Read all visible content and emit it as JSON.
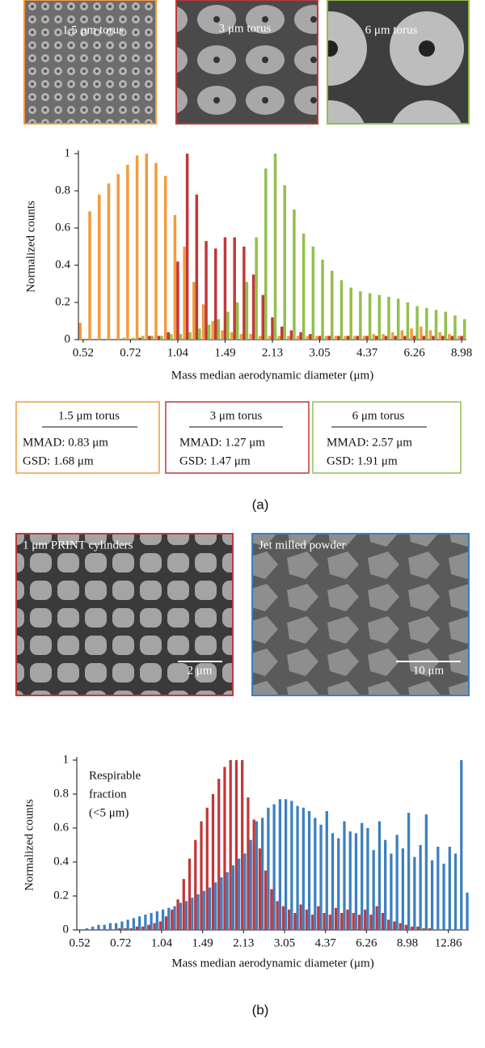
{
  "caption_a": "(a)",
  "caption_b": "(b)",
  "legend_boxes": [
    {
      "lines": [
        "MMAD: 0.83 μm",
        "GSD: 1.68 μm"
      ]
    },
    {
      "lines": [
        "MMAD: 1.27 μm",
        "GSD: 1.47 μm"
      ]
    },
    {
      "lines": [
        "MMAD: 2.57 μm",
        "GSD: 1.91 μm"
      ]
    }
  ],
  "scale_bars": [
    "2 μm",
    "10 μm"
  ],
  "chart_data": [
    {
      "type": "bar",
      "xlabel": "Mass median aerodynamic diameter (μm)",
      "ylabel": "Normalized counts",
      "categories": [
        "0.52",
        null,
        null,
        null,
        null,
        "0.72",
        null,
        null,
        null,
        null,
        "1.04",
        null,
        null,
        null,
        null,
        "1.49",
        null,
        null,
        null,
        null,
        "2.13",
        null,
        null,
        null,
        null,
        "3.05",
        null,
        null,
        null,
        null,
        "4.37",
        null,
        null,
        null,
        null,
        "6.26",
        null,
        null,
        null,
        null,
        "8.98"
      ],
      "ylim": [
        0,
        1
      ],
      "yticks": [
        0,
        0.2,
        0.4,
        0.6,
        0.8,
        1
      ],
      "series": [
        {
          "name": "1.5 μm torus",
          "color": "#f39a3d",
          "values": [
            0.09,
            0.69,
            0.78,
            0.84,
            0.89,
            0.94,
            0.99,
            1.0,
            0.95,
            0.88,
            0.67,
            0.5,
            0.31,
            0.19,
            0.1,
            0.05,
            0.04,
            0.03,
            0.03,
            0.02,
            0.02,
            0.02,
            0.02,
            0.02,
            0.02,
            0.02,
            0.02,
            0.02,
            0.02,
            0.02,
            0.02,
            0.03,
            0.03,
            0.04,
            0.05,
            0.06,
            0.07,
            0.05,
            0.04,
            0.03,
            0.02
          ]
        },
        {
          "name": "3 μm torus",
          "color": "#c0393b",
          "values": [
            0,
            0,
            0,
            0,
            0,
            0,
            0.01,
            0.02,
            0.02,
            0.04,
            0.42,
            1.0,
            0.78,
            0.53,
            0.49,
            0.55,
            0.55,
            0.5,
            0.35,
            0.24,
            0.12,
            0.07,
            0.05,
            0.04,
            0.03,
            0.02,
            0.02,
            0.02,
            0.02,
            0.02,
            0.02,
            0.02,
            0.02,
            0.02,
            0.02,
            0.02,
            0.02,
            0.02,
            0.02,
            0.02,
            0.02
          ]
        },
        {
          "name": "6 μm torus",
          "color": "#92c04a",
          "values": [
            0,
            0,
            0,
            0,
            0.01,
            0.01,
            0.02,
            0.02,
            0.02,
            0.03,
            0.03,
            0.04,
            0.06,
            0.08,
            0.11,
            0.15,
            0.2,
            0.31,
            0.55,
            0.92,
            1.0,
            0.83,
            0.7,
            0.57,
            0.5,
            0.43,
            0.37,
            0.32,
            0.28,
            0.26,
            0.25,
            0.24,
            0.23,
            0.22,
            0.2,
            0.18,
            0.17,
            0.16,
            0.15,
            0.13,
            0.11
          ]
        }
      ]
    },
    {
      "type": "bar",
      "xlabel": "Mass median aerodynamic diameter (μm)",
      "ylabel": "Normalized counts",
      "annotation": [
        "Respirable",
        "fraction",
        "(<5 μm)"
      ],
      "categories": [
        "0.52",
        null,
        null,
        null,
        null,
        null,
        null,
        "0.72",
        null,
        null,
        null,
        null,
        null,
        null,
        "1.04",
        null,
        null,
        null,
        null,
        null,
        null,
        "1.49",
        null,
        null,
        null,
        null,
        null,
        null,
        "2.13",
        null,
        null,
        null,
        null,
        null,
        null,
        "3.05",
        null,
        null,
        null,
        null,
        null,
        null,
        "4.37",
        null,
        null,
        null,
        null,
        null,
        null,
        "6.26",
        null,
        null,
        null,
        null,
        null,
        null,
        "8.98",
        null,
        null,
        null,
        null,
        null,
        null,
        "12.86",
        null,
        null,
        null
      ],
      "ylim": [
        0,
        1
      ],
      "yticks": [
        0,
        0.2,
        0.4,
        0.6,
        0.8,
        1
      ],
      "series": [
        {
          "name": "1 μm PRINT cylinders",
          "color": "#c0393b",
          "values": [
            0,
            0,
            0,
            0,
            0,
            0,
            0,
            0.01,
            0.01,
            0.01,
            0.02,
            0.02,
            0.03,
            0.04,
            0.05,
            0.08,
            0.12,
            0.18,
            0.3,
            0.42,
            0.53,
            0.64,
            0.72,
            0.8,
            0.89,
            0.96,
            1.0,
            1.0,
            1.0,
            0.78,
            0.65,
            0.48,
            0.35,
            0.24,
            0.17,
            0.14,
            0.12,
            0.1,
            0.15,
            0.12,
            0.09,
            0.14,
            0.1,
            0.09,
            0.13,
            0.1,
            0.12,
            0.1,
            0.09,
            0.12,
            0.09,
            0.14,
            0.1,
            0.06,
            0.05,
            0.04,
            0.03,
            0.02,
            0.02,
            0.01,
            0.01,
            0,
            0,
            0,
            0,
            0,
            0
          ]
        },
        {
          "name": "Jet milled powder",
          "color": "#3c7fc0",
          "values": [
            0,
            0.01,
            0.02,
            0.03,
            0.03,
            0.04,
            0.04,
            0.05,
            0.06,
            0.07,
            0.08,
            0.09,
            0.1,
            0.11,
            0.12,
            0.13,
            0.14,
            0.16,
            0.17,
            0.19,
            0.21,
            0.23,
            0.25,
            0.28,
            0.31,
            0.34,
            0.38,
            0.42,
            0.45,
            0.53,
            0.64,
            0.66,
            0.72,
            0.74,
            0.77,
            0.77,
            0.76,
            0.73,
            0.72,
            0.7,
            0.66,
            0.62,
            0.7,
            0.57,
            0.54,
            0.64,
            0.58,
            0.57,
            0.63,
            0.6,
            0.47,
            0.64,
            0.53,
            0.45,
            0.56,
            0.48,
            0.69,
            0.43,
            0.5,
            0.68,
            0.41,
            0.49,
            0.39,
            0.49,
            0.45,
            1.0,
            0.22
          ]
        }
      ]
    }
  ]
}
